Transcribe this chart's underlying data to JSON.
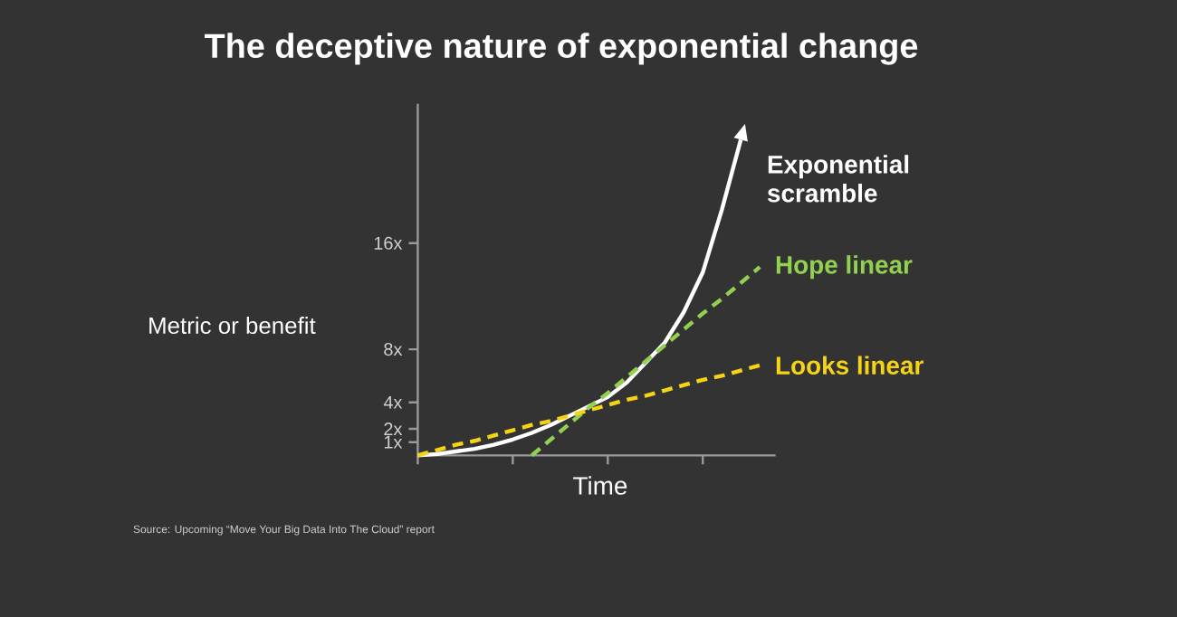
{
  "chart_data": {
    "type": "line",
    "title": "The deceptive nature of exponential change",
    "xlabel": "Time",
    "ylabel": "Metric or benefit",
    "annotations": [
      "Source: Upcoming “Move Your Big Data Into The Cloud” report"
    ],
    "categories": [
      null,
      null,
      null,
      null,
      null,
      null,
      null,
      null,
      null,
      null,
      null,
      null,
      null,
      null,
      null,
      null,
      null,
      null,
      null
    ],
    "ylim": [
      0,
      26.5
    ],
    "yticks": [
      {
        "value": 1,
        "label": "1x"
      },
      {
        "value": 2,
        "label": "2x"
      },
      {
        "value": 4,
        "label": "4x"
      },
      {
        "value": 8,
        "label": "8x"
      },
      {
        "value": 16,
        "label": "16x"
      }
    ],
    "marker": "none",
    "legend": false,
    "grid": false,
    "series": [
      {
        "name": "Exponential scramble",
        "color": "#ffffff",
        "line_style": "solid",
        "values": [
          0,
          0.1,
          0.3,
          0.5,
          0.8,
          1.2,
          1.7,
          2.3,
          3,
          3.7,
          4.4,
          5.5,
          7,
          8.5,
          10.8,
          13.8,
          18.5,
          23.8,
          null
        ]
      },
      {
        "name": "Hope linear",
        "color": "#92d050",
        "line_style": "dashed",
        "values": [
          null,
          null,
          null,
          null,
          null,
          null,
          0,
          1.2,
          2.4,
          3.6,
          4.7,
          5.9,
          7.1,
          8.3,
          9.5,
          10.7,
          11.8,
          13,
          14.2
        ]
      },
      {
        "name": "Looks linear",
        "color": "#f5d316",
        "line_style": "dashed",
        "values": [
          0,
          0.4,
          0.8,
          1.1,
          1.5,
          1.9,
          2.3,
          2.6,
          3,
          3.4,
          3.8,
          4.2,
          4.5,
          4.9,
          5.3,
          5.7,
          6,
          6.4,
          6.8
        ]
      }
    ]
  }
}
